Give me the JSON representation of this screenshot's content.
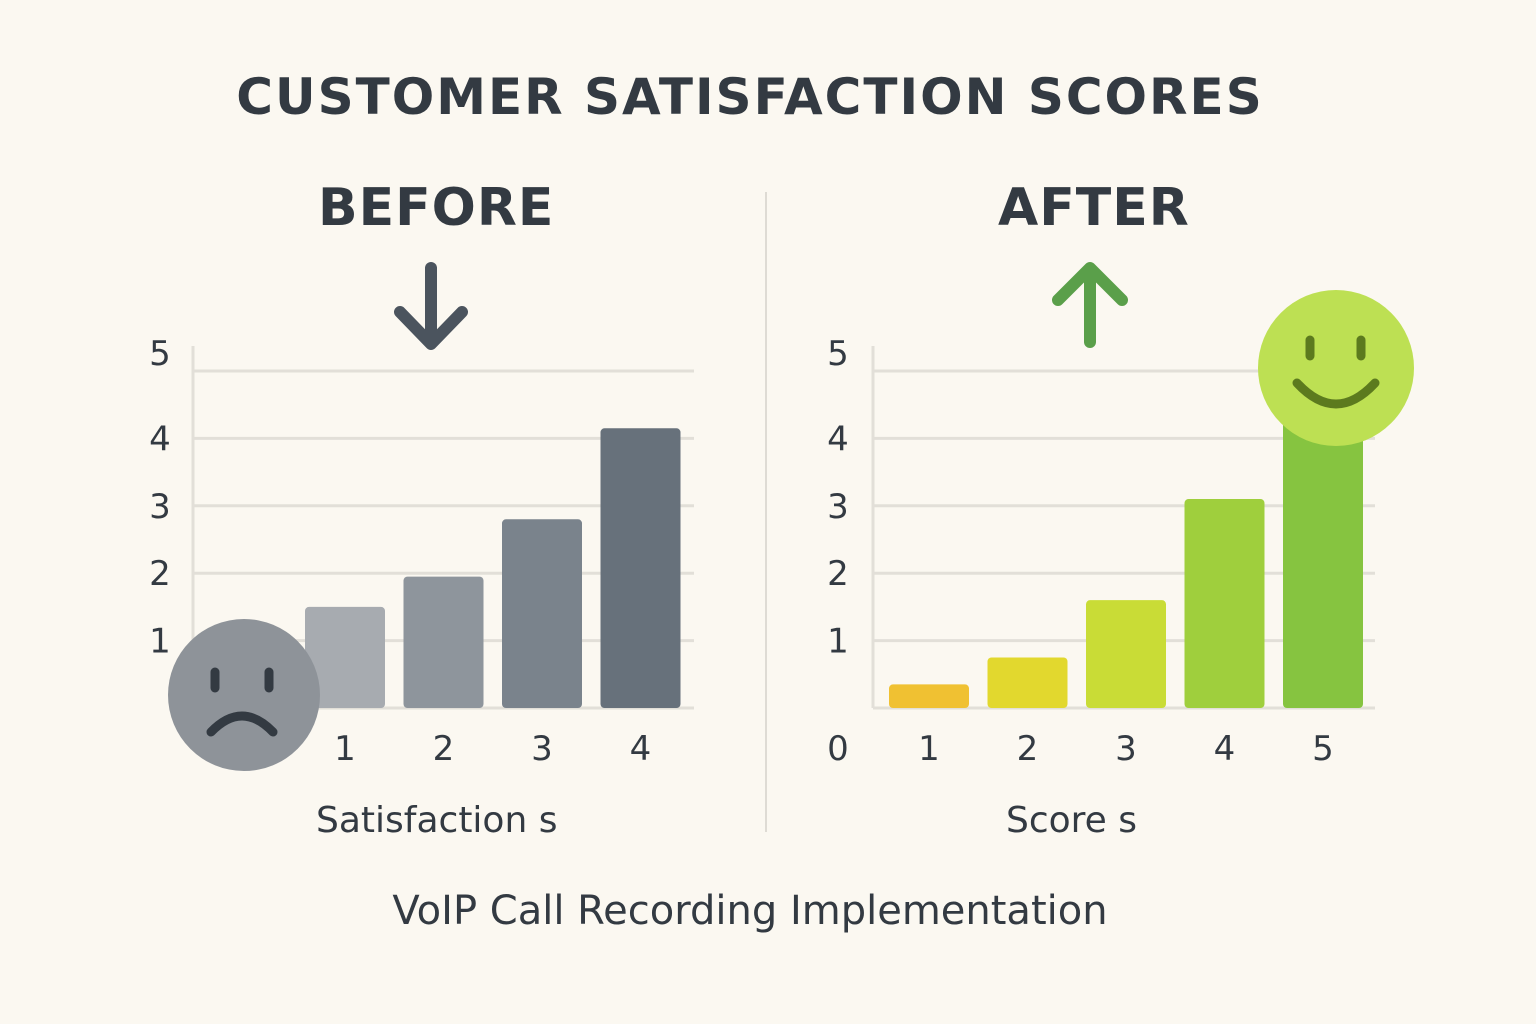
{
  "title": "CUSTOMER SATISFACTION SCORES",
  "footer": "VoIP Call Recording Implementation",
  "icons": {
    "before_arrow": "arrow-down-icon",
    "after_arrow": "arrow-up-icon",
    "before_face": "sad-face-icon",
    "after_face": "happy-face-icon"
  },
  "colors": {
    "background": "#fbf8f1",
    "text": "#333a42",
    "before_arrow": "#4b545e",
    "after_arrow": "#5a9f4a",
    "sad_face": "#8e9399",
    "happy_face": "#bde053"
  },
  "chart_data": [
    {
      "type": "bar",
      "title": "BEFORE",
      "xlabel": "Satisfaction s",
      "ylabel": "",
      "categories": [
        "1",
        "2",
        "3",
        "4"
      ],
      "values": [
        1.5,
        1.95,
        2.8,
        4.15
      ],
      "colors": [
        "#a7abb0",
        "#8e959c",
        "#7a838c",
        "#67717b"
      ],
      "yticks": [
        "1",
        "2",
        "3",
        "4",
        "5"
      ],
      "ylim": [
        0,
        5
      ],
      "grid": true
    },
    {
      "type": "bar",
      "title": "AFTER",
      "xlabel": "Score s",
      "ylabel": "",
      "categories": [
        "1",
        "2",
        "3",
        "4",
        "5"
      ],
      "values": [
        0.35,
        0.75,
        1.6,
        3.1,
        4.3
      ],
      "colors": [
        "#f0c132",
        "#e2d82e",
        "#c9dc36",
        "#9fcf3d",
        "#86c440"
      ],
      "yticks": [
        "0",
        "1",
        "2",
        "3",
        "4",
        "5"
      ],
      "ylim": [
        0,
        5
      ],
      "grid": true
    }
  ]
}
